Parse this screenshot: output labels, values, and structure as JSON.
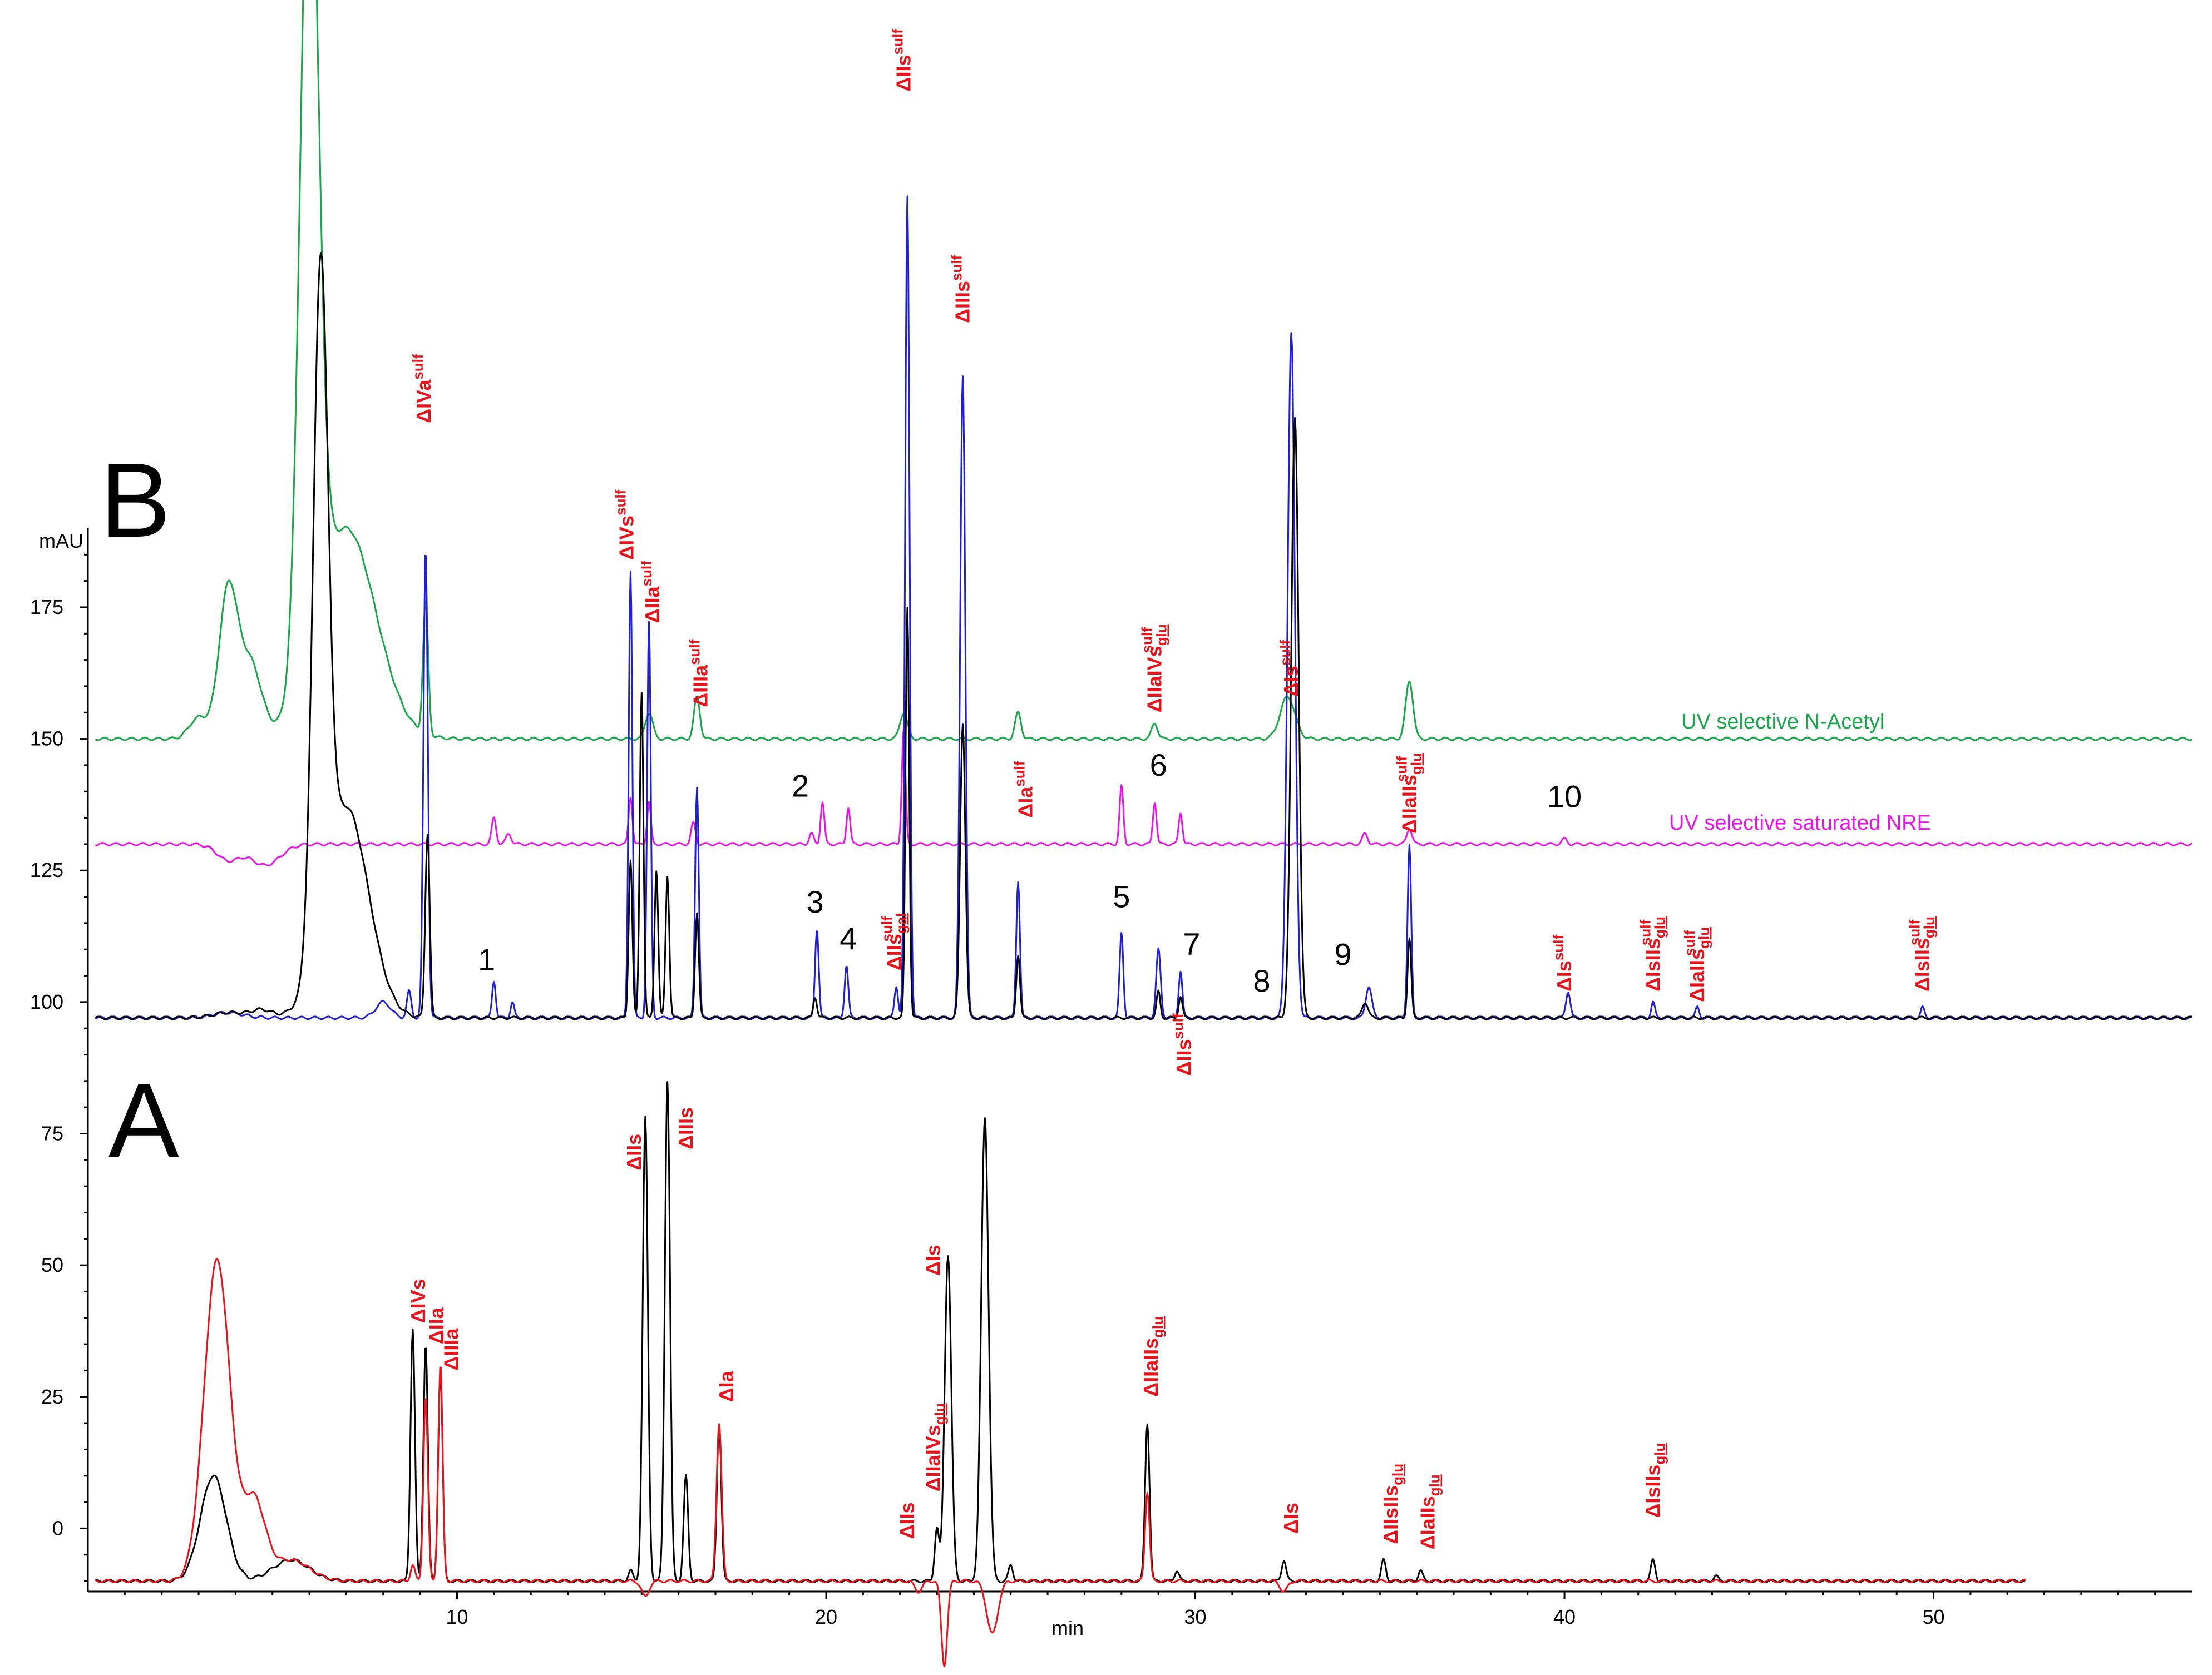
{
  "chart_data": {
    "type": "line",
    "xlabel": "min",
    "ylabel": "mAU",
    "xlim": [
      0,
      57
    ],
    "ylim": [
      -12,
      190
    ],
    "x_ticks": [
      10,
      20,
      30,
      40,
      50
    ],
    "y_ticks": [
      0,
      25,
      50,
      75,
      100,
      125,
      150,
      175
    ],
    "panels": [
      {
        "letter": "B"
      },
      {
        "letter": "A"
      }
    ],
    "trace_labels": [
      {
        "text": "UV selective  N-Acetyl",
        "color": "#1aa64a"
      },
      {
        "text": "UV selective saturated NRE",
        "color": "#e815e8"
      }
    ],
    "series": [
      {
        "color": "#1aa64a",
        "baseline": 150,
        "x_end": 57,
        "peaks": [
          [
            3.0,
            4,
            0.25
          ],
          [
            3.8,
            28,
            0.25
          ],
          [
            4.4,
            14,
            0.3
          ],
          [
            6.0,
            160,
            0.25
          ],
          [
            7.0,
            40,
            0.8
          ],
          [
            9.15,
            25,
            0.07
          ],
          [
            15.2,
            5,
            0.1
          ],
          [
            16.5,
            8,
            0.08
          ],
          [
            22.1,
            5,
            0.1
          ],
          [
            25.2,
            5,
            0.08
          ],
          [
            28.9,
            3,
            0.08
          ],
          [
            32.5,
            8,
            0.2
          ],
          [
            35.8,
            11,
            0.1
          ]
        ]
      },
      {
        "color": "#e815e8",
        "baseline": 130,
        "x_end": 57,
        "peaks": [
          [
            3.8,
            -3,
            0.3
          ],
          [
            4.8,
            -4,
            0.4
          ],
          [
            11.0,
            5,
            0.06
          ],
          [
            11.4,
            2,
            0.07
          ],
          [
            14.7,
            9,
            0.05
          ],
          [
            15.2,
            8,
            0.05
          ],
          [
            16.4,
            4,
            0.06
          ],
          [
            19.6,
            2,
            0.06
          ],
          [
            19.9,
            8,
            0.05
          ],
          [
            20.6,
            7,
            0.05
          ],
          [
            22.1,
            22,
            0.05
          ],
          [
            28.0,
            11,
            0.05
          ],
          [
            28.9,
            8,
            0.05
          ],
          [
            29.6,
            6,
            0.05
          ],
          [
            34.6,
            2,
            0.07
          ],
          [
            35.8,
            3,
            0.07
          ],
          [
            40.0,
            1,
            0.07
          ]
        ]
      },
      {
        "color": "#1f1fd6",
        "baseline": 97,
        "x_end": 57,
        "peaks": [
          [
            3.8,
            1,
            0.4
          ],
          [
            8.0,
            3,
            0.2
          ],
          [
            8.7,
            5,
            0.06
          ],
          [
            9.15,
            89,
            0.06
          ],
          [
            11.0,
            7,
            0.05
          ],
          [
            11.5,
            3,
            0.05
          ],
          [
            14.7,
            85,
            0.05
          ],
          [
            15.2,
            75,
            0.05
          ],
          [
            16.5,
            44,
            0.05
          ],
          [
            19.75,
            17,
            0.05
          ],
          [
            20.55,
            10,
            0.05
          ],
          [
            21.9,
            6,
            0.05
          ],
          [
            22.2,
            156,
            0.06
          ],
          [
            23.7,
            122,
            0.07
          ],
          [
            25.2,
            26,
            0.05
          ],
          [
            28.0,
            16,
            0.05
          ],
          [
            29.0,
            13,
            0.06
          ],
          [
            29.6,
            9,
            0.05
          ],
          [
            32.6,
            130,
            0.1
          ],
          [
            34.7,
            6,
            0.08
          ],
          [
            35.8,
            33,
            0.05
          ],
          [
            40.1,
            5,
            0.06
          ],
          [
            42.4,
            3,
            0.05
          ],
          [
            43.6,
            2,
            0.05
          ],
          [
            49.7,
            2,
            0.05
          ]
        ]
      },
      {
        "color": "#000000",
        "baseline": 97,
        "x_end": 57,
        "peaks": [
          [
            3.8,
            1,
            0.4
          ],
          [
            4.7,
            1.5,
            0.3
          ],
          [
            6.3,
            125,
            0.2
          ],
          [
            7.0,
            40,
            0.6
          ],
          [
            9.2,
            35,
            0.06
          ],
          [
            14.7,
            30,
            0.05
          ],
          [
            15.0,
            62,
            0.05
          ],
          [
            15.4,
            28,
            0.05
          ],
          [
            15.7,
            27,
            0.05
          ],
          [
            16.5,
            20,
            0.05
          ],
          [
            19.7,
            4,
            0.05
          ],
          [
            22.2,
            78,
            0.05
          ],
          [
            23.7,
            56,
            0.07
          ],
          [
            25.2,
            12,
            0.05
          ],
          [
            29.0,
            5,
            0.05
          ],
          [
            29.6,
            4,
            0.05
          ],
          [
            32.7,
            114,
            0.1
          ],
          [
            34.6,
            3,
            0.08
          ],
          [
            35.8,
            15,
            0.05
          ]
        ]
      },
      {
        "color": "#000000",
        "baseline": -10,
        "x_end": 52.5,
        "peaks": [
          [
            3.4,
            20,
            0.35
          ],
          [
            5.5,
            4,
            0.5
          ],
          [
            8.8,
            48,
            0.06
          ],
          [
            9.15,
            45,
            0.06
          ],
          [
            9.55,
            40,
            0.06
          ],
          [
            14.7,
            2,
            0.06
          ],
          [
            15.1,
            88,
            0.07
          ],
          [
            15.7,
            95,
            0.07
          ],
          [
            16.2,
            20,
            0.06
          ],
          [
            17.1,
            30,
            0.06
          ],
          [
            23.0,
            10,
            0.06
          ],
          [
            23.3,
            62,
            0.09
          ],
          [
            24.3,
            88,
            0.1
          ],
          [
            25.0,
            3,
            0.06
          ],
          [
            28.7,
            30,
            0.06
          ],
          [
            29.5,
            2,
            0.06
          ],
          [
            32.4,
            4,
            0.06
          ],
          [
            35.1,
            4,
            0.06
          ],
          [
            36.1,
            2,
            0.06
          ],
          [
            42.4,
            4,
            0.06
          ],
          [
            44.1,
            1,
            0.06
          ]
        ]
      },
      {
        "color": "#e8131b",
        "baseline": -10,
        "x_end": 52.5,
        "peaks": [
          [
            3.5,
            61,
            0.35
          ],
          [
            4.5,
            15,
            0.3
          ],
          [
            5.5,
            4,
            0.5
          ],
          [
            8.8,
            3,
            0.06
          ],
          [
            9.15,
            35,
            0.06
          ],
          [
            9.55,
            41,
            0.06
          ],
          [
            15.1,
            -3,
            0.1
          ],
          [
            17.1,
            30,
            0.07
          ],
          [
            22.5,
            -2,
            0.1
          ],
          [
            23.2,
            -16,
            0.08
          ],
          [
            24.5,
            -10,
            0.15
          ],
          [
            28.7,
            17,
            0.06
          ],
          [
            32.4,
            -2,
            0.1
          ]
        ]
      }
    ],
    "peak_labels": [
      {
        "x": 9.1,
        "y": 210,
        "base": "ΔIVa",
        "sup": "sulf",
        "sub": ""
      },
      {
        "x": 14.6,
        "y": 184,
        "base": "ΔIVs",
        "sup": "sulf",
        "sub": ""
      },
      {
        "x": 15.3,
        "y": 172,
        "base": "ΔIIa",
        "sup": "sulf",
        "sub": ""
      },
      {
        "x": 16.6,
        "y": 156,
        "base": "ΔIIIa",
        "sup": "sulf",
        "sub": ""
      },
      {
        "x": 22.1,
        "y": 273,
        "base": "ΔIIs",
        "sup": "sulf",
        "sub": ""
      },
      {
        "x": 21.85,
        "y": 106,
        "base": "ΔIIs",
        "sup": "sulf",
        "sub": "gal"
      },
      {
        "x": 23.7,
        "y": 229,
        "base": "ΔIIIs",
        "sup": "sulf",
        "sub": ""
      },
      {
        "x": 25.4,
        "y": 135,
        "base": "ΔIa",
        "sup": "sulf",
        "sub": ""
      },
      {
        "x": 28.9,
        "y": 155,
        "base": "ΔIIaIVs",
        "sup": "sulf",
        "sub": "glu"
      },
      {
        "x": 29.7,
        "y": 86,
        "base": "ΔIIs",
        "sup": "sulf",
        "sub": ""
      },
      {
        "x": 32.6,
        "y": 158,
        "base": "ΔIs",
        "sup": "sulf",
        "sub": ""
      },
      {
        "x": 35.8,
        "y": 132,
        "base": "ΔIIaIIs",
        "sup": "sulf",
        "sub": "glu"
      },
      {
        "x": 40.0,
        "y": 102,
        "base": "ΔIs",
        "sup": "sulf",
        "sub": ""
      },
      {
        "x": 42.4,
        "y": 102,
        "base": "ΔIsIIs",
        "sup": "sulf",
        "sub": "glu"
      },
      {
        "x": 43.6,
        "y": 100,
        "base": "ΔIaIIs",
        "sup": "sulf",
        "sub": "glu"
      },
      {
        "x": 49.7,
        "y": 102,
        "base": "ΔIsIIs",
        "sup": "sulf",
        "sub": "glu"
      },
      {
        "x": 8.95,
        "y": 39,
        "base": "ΔIVs",
        "sup": "",
        "sub": ""
      },
      {
        "x": 9.45,
        "y": 35,
        "base": "ΔIIa",
        "sup": "",
        "sub": ""
      },
      {
        "x": 9.85,
        "y": 30,
        "base": "ΔIIIa",
        "sup": "",
        "sub": ""
      },
      {
        "x": 14.8,
        "y": 68,
        "base": "ΔIIs",
        "sup": "",
        "sub": ""
      },
      {
        "x": 16.2,
        "y": 72,
        "base": "ΔIIIs",
        "sup": "",
        "sub": ""
      },
      {
        "x": 17.3,
        "y": 24,
        "base": "ΔIa",
        "sup": "",
        "sub": ""
      },
      {
        "x": 22.2,
        "y": -2,
        "base": "ΔIIs",
        "sup": "",
        "sub": ""
      },
      {
        "x": 22.9,
        "y": 7,
        "base": "ΔIIaIVs",
        "sup": "",
        "sub": "glu"
      },
      {
        "x": 22.9,
        "y": 48,
        "base": "ΔIs",
        "sup": "",
        "sub": ""
      },
      {
        "x": 28.8,
        "y": 25,
        "base": "ΔIIaIIs",
        "sup": "",
        "sub": "glu"
      },
      {
        "x": 32.6,
        "y": -1,
        "base": "ΔIs",
        "sup": "",
        "sub": ""
      },
      {
        "x": 35.3,
        "y": -3,
        "base": "ΔIIsIIs",
        "sup": "",
        "sub": "glu"
      },
      {
        "x": 36.3,
        "y": -4,
        "base": "ΔIaIIs",
        "sup": "",
        "sub": "glu"
      },
      {
        "x": 42.4,
        "y": 2,
        "base": "ΔIsIIs",
        "sup": "",
        "sub": "glu"
      }
    ],
    "peak_numbers": [
      {
        "x": 10.8,
        "y": 106,
        "text": "1"
      },
      {
        "x": 19.3,
        "y": 139,
        "text": "2"
      },
      {
        "x": 19.7,
        "y": 117,
        "text": "3"
      },
      {
        "x": 20.6,
        "y": 110,
        "text": "4"
      },
      {
        "x": 28.0,
        "y": 118,
        "text": "5"
      },
      {
        "x": 29.0,
        "y": 143,
        "text": "6"
      },
      {
        "x": 29.9,
        "y": 109,
        "text": "7"
      },
      {
        "x": 31.8,
        "y": 102,
        "text": "8"
      },
      {
        "x": 34.0,
        "y": 107,
        "text": "9"
      },
      {
        "x": 40.0,
        "y": 137,
        "text": "10"
      }
    ]
  }
}
